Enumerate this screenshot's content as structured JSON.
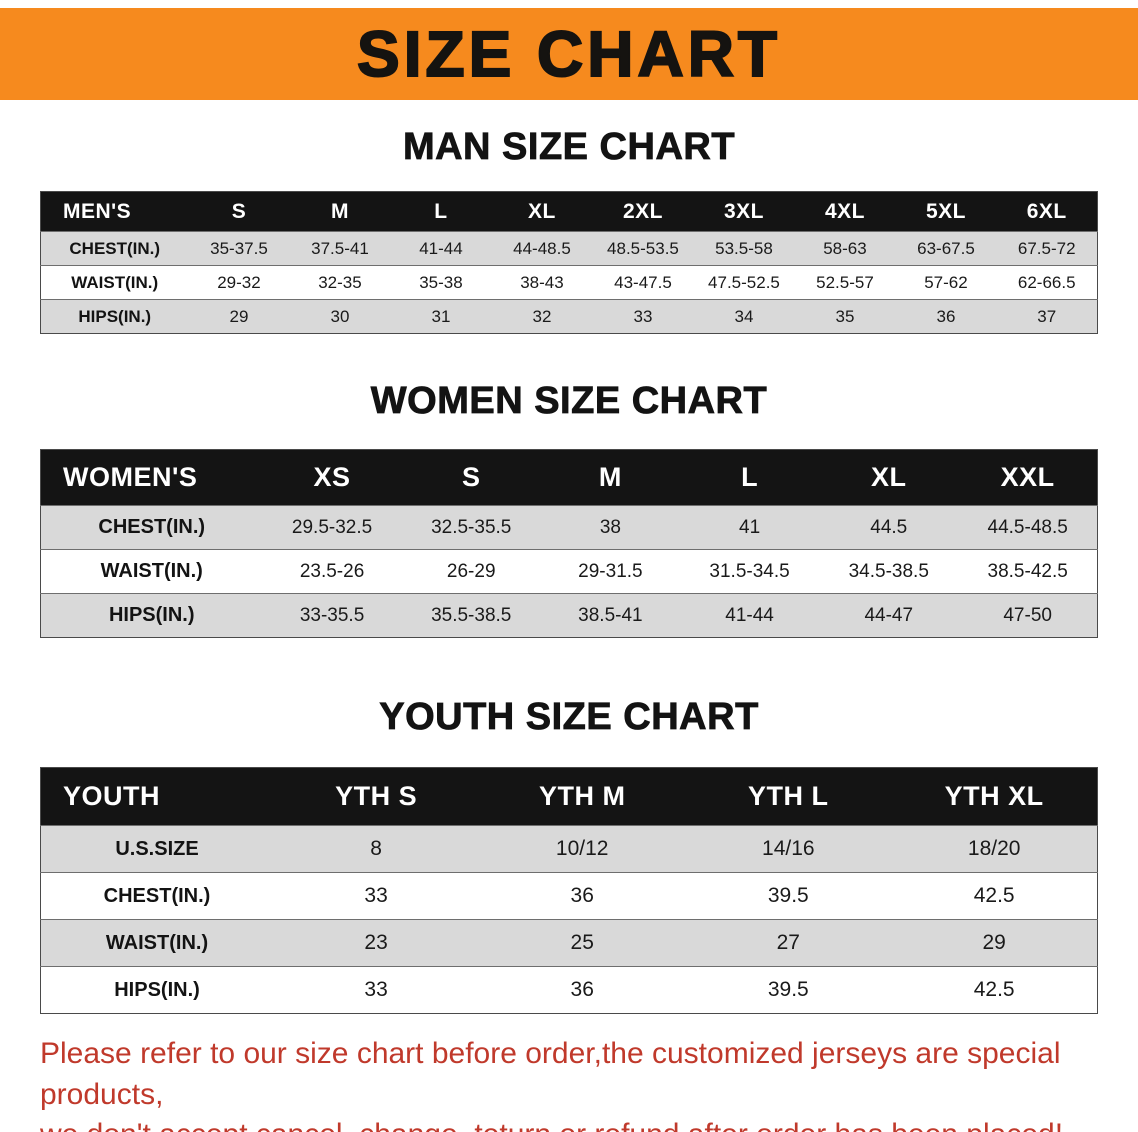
{
  "banner": {
    "title": "SIZE CHART"
  },
  "chart_data": [
    {
      "type": "table",
      "title": "MAN SIZE CHART",
      "columns": [
        "MEN'S",
        "S",
        "M",
        "L",
        "XL",
        "2XL",
        "3XL",
        "4XL",
        "5XL",
        "6XL"
      ],
      "rows": [
        [
          "CHEST(IN.)",
          "35-37.5",
          "37.5-41",
          "41-44",
          "44-48.5",
          "48.5-53.5",
          "53.5-58",
          "58-63",
          "63-67.5",
          "67.5-72"
        ],
        [
          "WAIST(IN.)",
          "29-32",
          "32-35",
          "35-38",
          "38-43",
          "43-47.5",
          "47.5-52.5",
          "52.5-57",
          "57-62",
          "62-66.5"
        ],
        [
          "HIPS(IN.)",
          "29",
          "30",
          "31",
          "32",
          "33",
          "34",
          "35",
          "36",
          "37"
        ]
      ]
    },
    {
      "type": "table",
      "title": "WOMEN SIZE CHART",
      "columns": [
        "WOMEN'S",
        "XS",
        "S",
        "M",
        "L",
        "XL",
        "XXL"
      ],
      "rows": [
        [
          "CHEST(IN.)",
          "29.5-32.5",
          "32.5-35.5",
          "38",
          "41",
          "44.5",
          "44.5-48.5"
        ],
        [
          "WAIST(IN.)",
          "23.5-26",
          "26-29",
          "29-31.5",
          "31.5-34.5",
          "34.5-38.5",
          "38.5-42.5"
        ],
        [
          "HIPS(IN.)",
          "33-35.5",
          "35.5-38.5",
          "38.5-41",
          "41-44",
          "44-47",
          "47-50"
        ]
      ]
    },
    {
      "type": "table",
      "title": "YOUTH SIZE CHART",
      "columns": [
        "YOUTH",
        "YTH S",
        "YTH M",
        "YTH L",
        "YTH XL"
      ],
      "rows": [
        [
          "U.S.SIZE",
          "8",
          "10/12",
          "14/16",
          "18/20"
        ],
        [
          "CHEST(IN.)",
          "33",
          "36",
          "39.5",
          "42.5"
        ],
        [
          "WAIST(IN.)",
          "23",
          "25",
          "27",
          "29"
        ],
        [
          "HIPS(IN.)",
          "33",
          "36",
          "39.5",
          "42.5"
        ]
      ]
    }
  ],
  "disclaimer": {
    "line1": "Please refer to our size chart before order,the customized jerseys are special products,",
    "line2": "we don't accept cancel, change, teturn or refund after order has been placed!"
  },
  "colors": {
    "banner_orange": "#f68a1e",
    "table_header_black": "#141414",
    "stripe_gray": "#d9d9d9",
    "heading_black": "#131313",
    "disclaimer_red": "#c0392b"
  }
}
